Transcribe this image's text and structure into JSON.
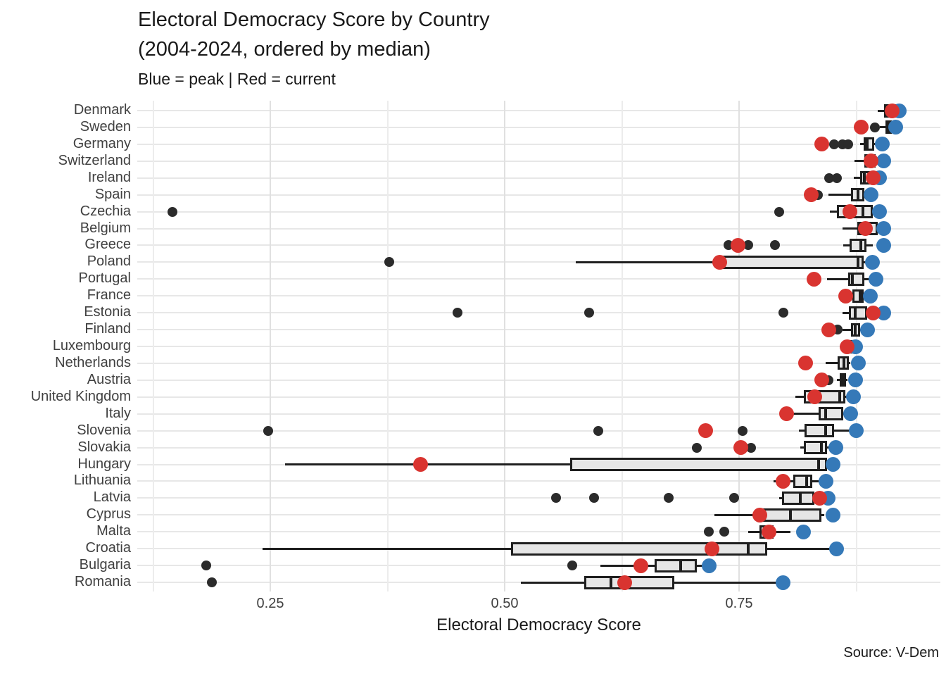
{
  "header": {
    "title_line1": "Electoral Democracy Score by Country",
    "title_line2": "(2004-2024, ordered by median)",
    "subtitle": "Blue = peak | Red = current"
  },
  "axis": {
    "xlabel": "Electoral Democracy Score",
    "ticks": [
      0.25,
      0.5,
      0.75
    ],
    "tick_labels": [
      "0.25",
      "0.50",
      "0.75"
    ]
  },
  "caption": "Source: V-Dem",
  "colors": {
    "current_red": "#d93430",
    "peak_blue": "#3579b8",
    "box_fill": "#e6e6e6",
    "box_border": "#1f1f1f",
    "outlier_black": "#2b2b2b",
    "gridline": "#e7e7e7"
  },
  "chart_data": {
    "type": "boxplot-horizontal",
    "title": "Electoral Democracy Score by Country (2004-2024, ordered by median)",
    "xlabel": "Electoral Democracy Score",
    "xlim": [
      0.11,
      0.96
    ],
    "x_ticks": [
      0.25,
      0.5,
      0.75
    ],
    "legend": {
      "blue_point": "peak",
      "red_point": "current"
    },
    "source": "V-Dem",
    "countries": [
      {
        "name": "Denmark",
        "low": 0.898,
        "q1": 0.905,
        "median": 0.911,
        "q3": 0.918,
        "high": 0.922,
        "outliers": [],
        "current": 0.913,
        "peak": 0.921
      },
      {
        "name": "Sweden",
        "low": 0.9,
        "q1": 0.906,
        "median": 0.909,
        "q3": 0.913,
        "high": 0.916,
        "outliers": [
          0.895
        ],
        "current": 0.88,
        "peak": 0.917
      },
      {
        "name": "Germany",
        "low": 0.879,
        "q1": 0.883,
        "median": 0.887,
        "q3": 0.894,
        "high": 0.896,
        "outliers": [
          0.851,
          0.86,
          0.866
        ],
        "current": 0.838,
        "peak": 0.903
      },
      {
        "name": "Switzerland",
        "low": 0.873,
        "q1": 0.884,
        "median": 0.889,
        "q3": 0.896,
        "high": 0.898,
        "outliers": [],
        "current": 0.891,
        "peak": 0.904
      },
      {
        "name": "Ireland",
        "low": 0.872,
        "q1": 0.879,
        "median": 0.884,
        "q3": 0.89,
        "high": 0.893,
        "outliers": [
          0.846,
          0.854
        ],
        "current": 0.893,
        "peak": 0.9
      },
      {
        "name": "Spain",
        "low": 0.845,
        "q1": 0.869,
        "median": 0.877,
        "q3": 0.884,
        "high": 0.886,
        "outliers": [
          0.834
        ],
        "current": 0.827,
        "peak": 0.891
      },
      {
        "name": "Czechia",
        "low": 0.847,
        "q1": 0.854,
        "median": 0.882,
        "q3": 0.893,
        "high": 0.895,
        "outliers": [
          0.146,
          0.793
        ],
        "current": 0.868,
        "peak": 0.9
      },
      {
        "name": "Belgium",
        "low": 0.86,
        "q1": 0.876,
        "median": 0.888,
        "q3": 0.898,
        "high": 0.9,
        "outliers": [],
        "current": 0.885,
        "peak": 0.904
      },
      {
        "name": "Greece",
        "low": 0.861,
        "q1": 0.868,
        "median": 0.88,
        "q3": 0.886,
        "high": 0.893,
        "outliers": [
          0.739,
          0.76,
          0.788
        ],
        "current": 0.749,
        "peak": 0.904
      },
      {
        "name": "Poland",
        "low": 0.576,
        "q1": 0.726,
        "median": 0.877,
        "q3": 0.883,
        "high": 0.885,
        "outliers": [
          0.377
        ],
        "current": 0.729,
        "peak": 0.892
      },
      {
        "name": "Portugal",
        "low": 0.844,
        "q1": 0.866,
        "median": 0.871,
        "q3": 0.884,
        "high": 0.89,
        "outliers": [],
        "current": 0.83,
        "peak": 0.896
      },
      {
        "name": "France",
        "low": 0.866,
        "q1": 0.871,
        "median": 0.879,
        "q3": 0.883,
        "high": 0.885,
        "outliers": [],
        "current": 0.864,
        "peak": 0.89
      },
      {
        "name": "Estonia",
        "low": 0.86,
        "q1": 0.867,
        "median": 0.874,
        "q3": 0.887,
        "high": 0.892,
        "outliers": [
          0.45,
          0.59,
          0.797
        ],
        "current": 0.893,
        "peak": 0.904
      },
      {
        "name": "Finland",
        "low": 0.86,
        "q1": 0.869,
        "median": 0.874,
        "q3": 0.879,
        "high": 0.881,
        "outliers": [
          0.855
        ],
        "current": 0.846,
        "peak": 0.887
      },
      {
        "name": "Luxembourg",
        "low": 0.862,
        "q1": 0.866,
        "median": 0.869,
        "q3": 0.872,
        "high": 0.874,
        "outliers": [],
        "current": 0.865,
        "peak": 0.874
      },
      {
        "name": "Netherlands",
        "low": 0.842,
        "q1": 0.855,
        "median": 0.862,
        "q3": 0.867,
        "high": 0.869,
        "outliers": [],
        "current": 0.821,
        "peak": 0.877
      },
      {
        "name": "Austria",
        "low": 0.854,
        "q1": 0.857,
        "median": 0.861,
        "q3": 0.864,
        "high": 0.866,
        "outliers": [
          0.845
        ],
        "current": 0.838,
        "peak": 0.874
      },
      {
        "name": "United Kingdom",
        "low": 0.81,
        "q1": 0.819,
        "median": 0.857,
        "q3": 0.863,
        "high": 0.865,
        "outliers": [],
        "current": 0.831,
        "peak": 0.872
      },
      {
        "name": "Italy",
        "low": 0.806,
        "q1": 0.835,
        "median": 0.842,
        "q3": 0.861,
        "high": 0.864,
        "outliers": [],
        "current": 0.801,
        "peak": 0.869
      },
      {
        "name": "Slovenia",
        "low": 0.814,
        "q1": 0.82,
        "median": 0.842,
        "q3": 0.851,
        "high": 0.87,
        "outliers": [
          0.248,
          0.6,
          0.754
        ],
        "current": 0.714,
        "peak": 0.875
      },
      {
        "name": "Slovakia",
        "low": 0.815,
        "q1": 0.819,
        "median": 0.838,
        "q3": 0.844,
        "high": 0.847,
        "outliers": [
          0.705,
          0.763
        ],
        "current": 0.752,
        "peak": 0.853
      },
      {
        "name": "Hungary",
        "low": 0.266,
        "q1": 0.57,
        "median": 0.835,
        "q3": 0.844,
        "high": 0.846,
        "outliers": [],
        "current": 0.41,
        "peak": 0.85
      },
      {
        "name": "Lithuania",
        "low": 0.787,
        "q1": 0.808,
        "median": 0.822,
        "q3": 0.828,
        "high": 0.835,
        "outliers": [],
        "current": 0.797,
        "peak": 0.843
      },
      {
        "name": "Latvia",
        "low": 0.793,
        "q1": 0.796,
        "median": 0.815,
        "q3": 0.83,
        "high": 0.833,
        "outliers": [
          0.555,
          0.595,
          0.675,
          0.745
        ],
        "current": 0.836,
        "peak": 0.845
      },
      {
        "name": "Cyprus",
        "low": 0.724,
        "q1": 0.769,
        "median": 0.805,
        "q3": 0.838,
        "high": 0.841,
        "outliers": [],
        "current": 0.772,
        "peak": 0.85
      },
      {
        "name": "Malta",
        "low": 0.76,
        "q1": 0.772,
        "median": 0.779,
        "q3": 0.787,
        "high": 0.805,
        "outliers": [
          0.718,
          0.734
        ],
        "current": 0.782,
        "peak": 0.819
      },
      {
        "name": "Croatia",
        "low": 0.242,
        "q1": 0.507,
        "median": 0.76,
        "q3": 0.78,
        "high": 0.847,
        "outliers": [],
        "current": 0.721,
        "peak": 0.854
      },
      {
        "name": "Bulgaria",
        "low": 0.602,
        "q1": 0.66,
        "median": 0.688,
        "q3": 0.705,
        "high": 0.712,
        "outliers": [
          0.182,
          0.572
        ],
        "current": 0.645,
        "peak": 0.718
      },
      {
        "name": "Romania",
        "low": 0.517,
        "q1": 0.585,
        "median": 0.613,
        "q3": 0.681,
        "high": 0.795,
        "outliers": [
          0.188
        ],
        "current": 0.628,
        "peak": 0.797
      }
    ]
  }
}
